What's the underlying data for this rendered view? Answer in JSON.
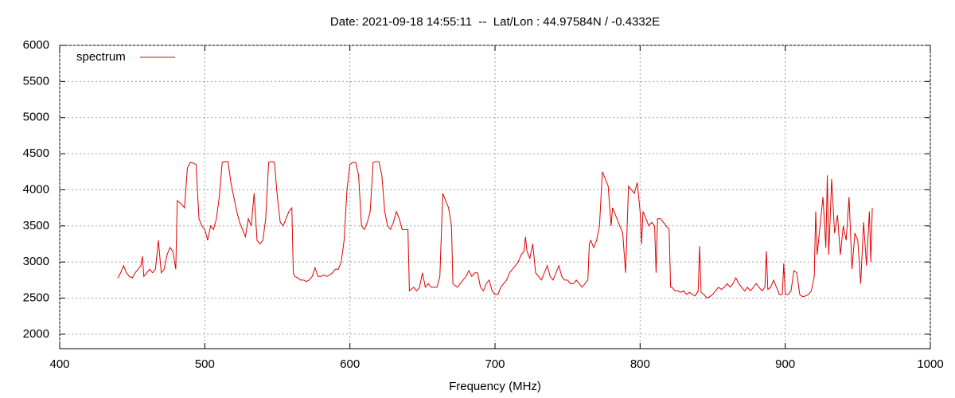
{
  "chart_data": {
    "type": "line",
    "title": "Date: 2021-09-18 14:55:11  --  Lat/Lon : 44.97584N / -0.4332E",
    "x_label": "Frequency (MHz)",
    "xlim": [
      400,
      1000
    ],
    "xticks": [
      400,
      500,
      600,
      700,
      800,
      900,
      1000
    ],
    "ylim": [
      1800,
      6000
    ],
    "yticks": [
      2000,
      2500,
      3000,
      3500,
      4000,
      4500,
      5000,
      5500,
      6000
    ],
    "grid": true,
    "legend": "top-left",
    "x": [
      440,
      442,
      444,
      446,
      448,
      450,
      452,
      454,
      456,
      457,
      458,
      460,
      462,
      464,
      466,
      468,
      470,
      472,
      474,
      476,
      478,
      480,
      481,
      484,
      486,
      488,
      490,
      492,
      494,
      496,
      498,
      500,
      502,
      504,
      506,
      508,
      510,
      512,
      514,
      516,
      518,
      520,
      522,
      524,
      526,
      528,
      530,
      532,
      534,
      536,
      538,
      540,
      542,
      544,
      546,
      548,
      550,
      552,
      554,
      556,
      558,
      560,
      561,
      562,
      564,
      566,
      568,
      570,
      572,
      574,
      576,
      578,
      580,
      582,
      584,
      586,
      588,
      590,
      592,
      594,
      596,
      598,
      600,
      602,
      604,
      606,
      608,
      610,
      612,
      614,
      616,
      618,
      620,
      622,
      624,
      626,
      628,
      630,
      632,
      634,
      636,
      638,
      640,
      641,
      642,
      644,
      646,
      648,
      650,
      652,
      654,
      656,
      658,
      660,
      662,
      664,
      666,
      668,
      670,
      671,
      672,
      674,
      676,
      678,
      680,
      682,
      684,
      686,
      688,
      690,
      692,
      694,
      696,
      698,
      700,
      702,
      704,
      706,
      708,
      710,
      712,
      714,
      716,
      718,
      720,
      721,
      722,
      724,
      726,
      728,
      730,
      732,
      734,
      736,
      738,
      740,
      742,
      744,
      746,
      748,
      750,
      752,
      754,
      756,
      758,
      760,
      762,
      764,
      765,
      766,
      768,
      770,
      772,
      774,
      776,
      778,
      780,
      781,
      784,
      786,
      788,
      790,
      792,
      794,
      796,
      798,
      800,
      801,
      802,
      804,
      806,
      808,
      810,
      811,
      812,
      814,
      816,
      818,
      820,
      821,
      822,
      824,
      826,
      828,
      830,
      832,
      834,
      836,
      838,
      840,
      841,
      842,
      844,
      846,
      848,
      850,
      852,
      854,
      856,
      858,
      860,
      862,
      864,
      866,
      868,
      870,
      872,
      874,
      876,
      878,
      880,
      882,
      884,
      886,
      887,
      888,
      890,
      892,
      894,
      896,
      898,
      899,
      900,
      902,
      904,
      906,
      908,
      910,
      912,
      914,
      916,
      918,
      920,
      921,
      922,
      924,
      926,
      928,
      929,
      930,
      932,
      934,
      936,
      938,
      940,
      942,
      944,
      946,
      948,
      950,
      952,
      954,
      956,
      958,
      959,
      960
    ],
    "series": [
      {
        "name": "spectrum",
        "color": "#e00000",
        "values": [
          2780,
          2850,
          2950,
          2850,
          2800,
          2780,
          2850,
          2900,
          2950,
          3080,
          2800,
          2850,
          2900,
          2850,
          2900,
          3300,
          2850,
          2900,
          3100,
          3200,
          3150,
          2900,
          3850,
          3800,
          3750,
          4300,
          4380,
          4370,
          4350,
          3600,
          3500,
          3450,
          3300,
          3500,
          3450,
          3600,
          3900,
          4380,
          4390,
          4390,
          4100,
          3900,
          3700,
          3550,
          3450,
          3350,
          3600,
          3500,
          3950,
          3300,
          3250,
          3300,
          3600,
          4380,
          4390,
          4380,
          3900,
          3550,
          3500,
          3600,
          3700,
          3750,
          2850,
          2800,
          2780,
          2750,
          2750,
          2730,
          2750,
          2800,
          2920,
          2800,
          2800,
          2820,
          2800,
          2820,
          2850,
          2900,
          2900,
          3000,
          3300,
          4000,
          4350,
          4380,
          4380,
          4200,
          3500,
          3450,
          3550,
          3700,
          4380,
          4390,
          4390,
          4200,
          3700,
          3500,
          3450,
          3550,
          3700,
          3600,
          3450,
          3450,
          3450,
          2600,
          2620,
          2650,
          2600,
          2650,
          2850,
          2650,
          2700,
          2650,
          2650,
          2650,
          2800,
          3950,
          3850,
          3750,
          3500,
          2700,
          2680,
          2650,
          2700,
          2750,
          2800,
          2880,
          2800,
          2850,
          2850,
          2650,
          2600,
          2700,
          2750,
          2600,
          2550,
          2550,
          2650,
          2700,
          2750,
          2850,
          2900,
          2950,
          3000,
          3100,
          3150,
          3350,
          3150,
          3050,
          3250,
          2850,
          2800,
          2750,
          2850,
          2950,
          2800,
          2750,
          2850,
          2950,
          2800,
          2750,
          2750,
          2700,
          2700,
          2750,
          2700,
          2650,
          2700,
          2750,
          3250,
          3300,
          3200,
          3300,
          3500,
          4250,
          4150,
          4050,
          3500,
          3750,
          3600,
          3500,
          3400,
          2850,
          4050,
          4000,
          3950,
          4100,
          3700,
          3250,
          3700,
          3600,
          3500,
          3550,
          3500,
          2850,
          3600,
          3600,
          3550,
          3500,
          3450,
          2650,
          2650,
          2600,
          2600,
          2580,
          2600,
          2550,
          2580,
          2550,
          2530,
          2600,
          3220,
          2580,
          2550,
          2500,
          2520,
          2550,
          2600,
          2650,
          2620,
          2650,
          2700,
          2650,
          2700,
          2780,
          2700,
          2650,
          2600,
          2650,
          2600,
          2650,
          2700,
          2650,
          2600,
          2650,
          3150,
          2620,
          2650,
          2750,
          2650,
          2550,
          2550,
          2980,
          2550,
          2550,
          2600,
          2880,
          2850,
          2550,
          2520,
          2530,
          2550,
          2600,
          2800,
          3700,
          3100,
          3500,
          3900,
          3200,
          4200,
          3100,
          4150,
          3400,
          3650,
          3100,
          3500,
          3300,
          3900,
          2900,
          3400,
          3300,
          2700,
          3550,
          2950,
          3700,
          3000,
          3750
        ]
      }
    ]
  }
}
